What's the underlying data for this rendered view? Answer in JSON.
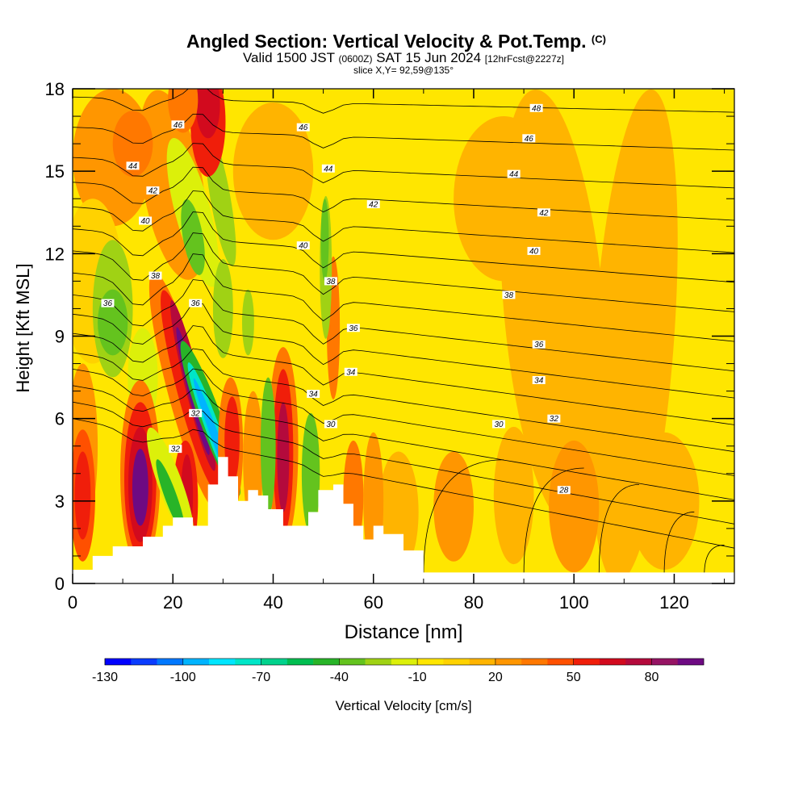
{
  "header": {
    "title": "Angled Section: Vertical Velocity & Pot.Temp.",
    "title_tag": "(C)",
    "valid_prefix": "Valid 1500 JST",
    "valid_zulu": "(0600Z)",
    "valid_date": "SAT 15 Jun 2024",
    "forecast": "[12hrFcst@2227z]",
    "slice": "slice X,Y= 92,59@135°"
  },
  "chart_data": {
    "type": "heatmap",
    "xlabel": "Distance [nm]",
    "ylabel": "Height [Kft MSL]",
    "xlim": [
      0,
      132
    ],
    "ylim": [
      0,
      18
    ],
    "x_ticks": [
      "0",
      "20",
      "40",
      "60",
      "80",
      "100",
      "120"
    ],
    "y_ticks": [
      "0",
      "3",
      "6",
      "9",
      "12",
      "15",
      "18"
    ],
    "background_color": "#ffe600",
    "colorbar": {
      "label": "Vertical Velocity [cm/s]",
      "tick_labels": [
        "-130",
        "-100",
        "-70",
        "-40",
        "-10",
        "20",
        "50",
        "80"
      ],
      "colors": [
        "#0000ff",
        "#0a3cff",
        "#0078ff",
        "#00b4ff",
        "#00e6ff",
        "#00e6c8",
        "#00d28c",
        "#00be50",
        "#28b428",
        "#64c31e",
        "#a0d214",
        "#dcf00a",
        "#ffe600",
        "#ffd200",
        "#ffb400",
        "#ff9600",
        "#ff7800",
        "#ff5000",
        "#f01e0a",
        "#d20a1e",
        "#b40a3c",
        "#961464",
        "#6e0a82"
      ]
    },
    "terrain_nm_kft": [
      [
        0,
        0.5
      ],
      [
        4,
        1.0
      ],
      [
        8,
        1.35
      ],
      [
        12,
        1.35
      ],
      [
        14,
        1.7
      ],
      [
        18,
        2.1
      ],
      [
        20,
        2.4
      ],
      [
        24,
        2.1
      ],
      [
        27,
        3.6
      ],
      [
        29,
        4.6
      ],
      [
        31,
        3.9
      ],
      [
        33,
        3.0
      ],
      [
        35,
        3.4
      ],
      [
        37,
        3.2
      ],
      [
        39,
        2.7
      ],
      [
        42,
        2.1
      ],
      [
        44,
        2.1
      ],
      [
        47,
        2.6
      ],
      [
        49,
        3.4
      ],
      [
        52,
        3.6
      ],
      [
        54,
        2.9
      ],
      [
        56,
        2.1
      ],
      [
        58,
        1.6
      ],
      [
        60,
        2.1
      ],
      [
        62,
        1.8
      ],
      [
        66,
        1.2
      ],
      [
        70,
        0.4
      ],
      [
        132,
        0.35
      ]
    ],
    "theta_contour_labels": [
      "48",
      "46",
      "46",
      "46",
      "44",
      "44",
      "44",
      "42",
      "42",
      "42",
      "40",
      "40",
      "40",
      "38",
      "38",
      "38",
      "36",
      "36",
      "36",
      "36",
      "34",
      "34",
      "34",
      "32",
      "32",
      "32",
      "30",
      "30",
      "28"
    ]
  }
}
